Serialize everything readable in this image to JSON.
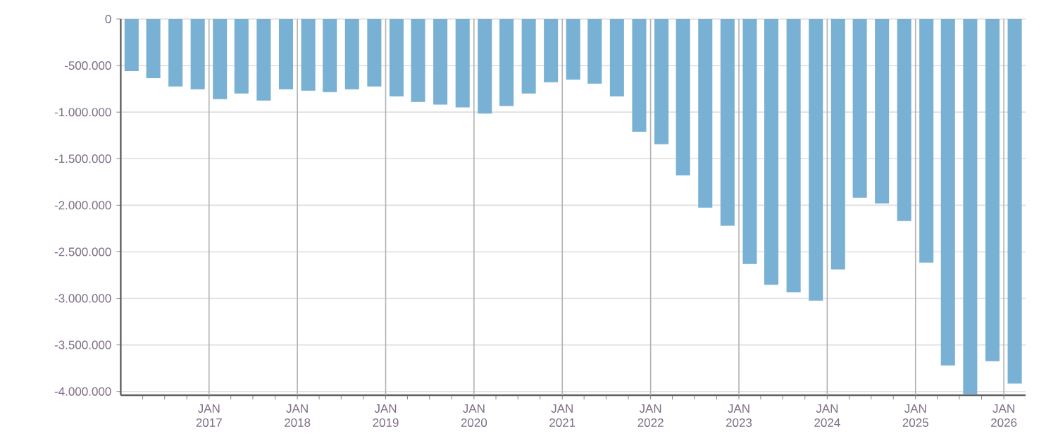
{
  "chart_data": {
    "type": "bar",
    "color": "#78b1d3",
    "x": [
      "2016-02-15",
      "2016-05-15",
      "2016-08-15",
      "2016-11-15",
      "2017-02-15",
      "2017-05-15",
      "2017-08-15",
      "2017-11-15",
      "2018-02-15",
      "2018-05-15",
      "2018-08-15",
      "2018-11-15",
      "2019-02-15",
      "2019-05-15",
      "2019-08-15",
      "2019-11-15",
      "2020-02-15",
      "2020-05-15",
      "2020-08-15",
      "2020-11-15",
      "2021-02-15",
      "2021-05-15",
      "2021-08-15",
      "2021-11-15",
      "2022-02-15",
      "2022-05-15",
      "2022-08-15",
      "2022-11-15",
      "2023-02-15",
      "2023-05-15",
      "2023-08-15",
      "2023-11-15",
      "2024-02-15",
      "2024-05-15",
      "2024-08-15",
      "2024-11-15",
      "2025-02-15",
      "2025-05-15",
      "2025-08-15",
      "2025-11-15",
      "2026-02-15"
    ],
    "values": [
      -560000,
      -635000,
      -725000,
      -755000,
      -860000,
      -800000,
      -875000,
      -755000,
      -770000,
      -785000,
      -755000,
      -725000,
      -830000,
      -890000,
      -920000,
      -950000,
      -1015000,
      -935000,
      -800000,
      -680000,
      -650000,
      -695000,
      -830000,
      -1210000,
      -1345000,
      -1680000,
      -2025000,
      -2220000,
      -2630000,
      -2855000,
      -2935000,
      -3025000,
      -2690000,
      -1920000,
      -1980000,
      -2170000,
      -2615000,
      -3720000,
      -4030000,
      -3675000,
      -3915000
    ],
    "xlim": [
      "2016-01-01",
      "2026-04-01"
    ],
    "xticks": [
      {
        "value": "2016-04-01",
        "label": null
      },
      {
        "value": "2016-07-01",
        "label": null
      },
      {
        "value": "2016-10-01",
        "label": null
      },
      {
        "value": "2017-01-01",
        "label": "JAN 2017"
      },
      {
        "value": "2017-04-01",
        "label": null
      },
      {
        "value": "2017-07-01",
        "label": null
      },
      {
        "value": "2017-10-01",
        "label": null
      },
      {
        "value": "2018-01-01",
        "label": "JAN 2018"
      },
      {
        "value": "2018-04-01",
        "label": null
      },
      {
        "value": "2018-07-01",
        "label": null
      },
      {
        "value": "2018-10-01",
        "label": null
      },
      {
        "value": "2019-01-01",
        "label": "JAN 2019"
      },
      {
        "value": "2019-04-01",
        "label": null
      },
      {
        "value": "2019-07-01",
        "label": null
      },
      {
        "value": "2019-10-01",
        "label": null
      },
      {
        "value": "2020-01-01",
        "label": "JAN 2020"
      },
      {
        "value": "2020-04-01",
        "label": null
      },
      {
        "value": "2020-07-01",
        "label": null
      },
      {
        "value": "2020-10-01",
        "label": null
      },
      {
        "value": "2021-01-01",
        "label": "JAN 2021"
      },
      {
        "value": "2021-04-01",
        "label": null
      },
      {
        "value": "2021-07-01",
        "label": null
      },
      {
        "value": "2021-10-01",
        "label": null
      },
      {
        "value": "2022-01-01",
        "label": "JAN 2022"
      },
      {
        "value": "2022-04-01",
        "label": null
      },
      {
        "value": "2022-07-01",
        "label": null
      },
      {
        "value": "2022-10-01",
        "label": null
      },
      {
        "value": "2023-01-01",
        "label": "JAN 2023"
      },
      {
        "value": "2023-04-01",
        "label": null
      },
      {
        "value": "2023-07-01",
        "label": null
      },
      {
        "value": "2023-10-01",
        "label": null
      },
      {
        "value": "2024-01-01",
        "label": "JAN 2024"
      },
      {
        "value": "2024-04-01",
        "label": null
      },
      {
        "value": "2024-07-01",
        "label": null
      },
      {
        "value": "2024-10-01",
        "label": null
      },
      {
        "value": "2025-01-01",
        "label": "JAN 2025"
      },
      {
        "value": "2025-04-01",
        "label": null
      },
      {
        "value": "2025-07-01",
        "label": null
      },
      {
        "value": "2025-10-01",
        "label": null
      },
      {
        "value": "2026-01-01",
        "label": "JAN 2026"
      }
    ],
    "ylim": [
      -4040000,
      0
    ],
    "yticks": [
      {
        "value": -4000000,
        "label": "-4.000.000"
      },
      {
        "value": -3500000,
        "label": "-3.500.000"
      },
      {
        "value": -3000000,
        "label": "-3.000.000"
      },
      {
        "value": -2500000,
        "label": "-2.500.000"
      },
      {
        "value": -2000000,
        "label": "-2.000.000"
      },
      {
        "value": -1500000,
        "label": "-1.500.000"
      },
      {
        "value": -1000000,
        "label": "-1.000.000"
      },
      {
        "value": -500000,
        "label": "-500.000"
      },
      0
    ],
    "grid": true
  }
}
